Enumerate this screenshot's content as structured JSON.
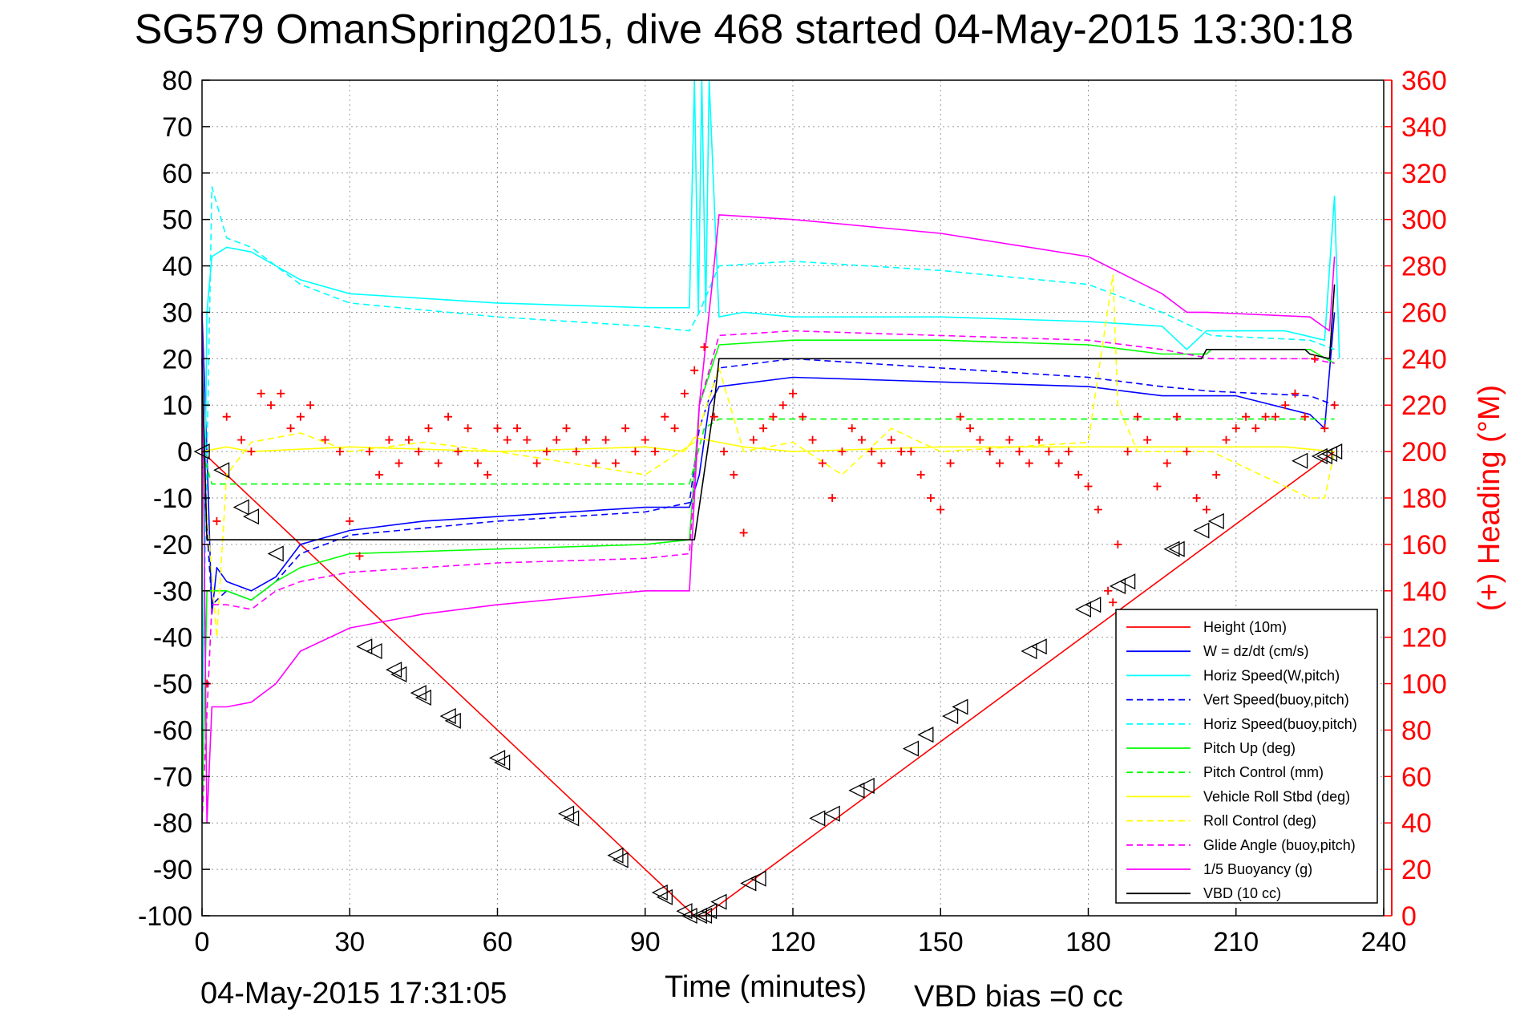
{
  "title": "SG579 OmanSpring2015, dive 468 started 04-May-2015 13:30:18",
  "footer": {
    "timestamp": "04-May-2015 17:31:05",
    "vbd_bias": "VBD bias =0 cc"
  },
  "colors": {
    "red": "#ff0000",
    "blue": "#0000ff",
    "cyan": "#00ffff",
    "green": "#00ff00",
    "yellow": "#ffff00",
    "magenta": "#ff00ff",
    "black": "#000000"
  },
  "chart_data": {
    "type": "line",
    "xlabel": "Time (minutes)",
    "ylabel": "",
    "y2label": "(+) Heading (°M)",
    "xlim": [
      0,
      240
    ],
    "ylim": [
      -100,
      80
    ],
    "y2lim": [
      0,
      360
    ],
    "xticks": [
      "0",
      "30",
      "60",
      "90",
      "120",
      "150",
      "180",
      "210",
      "240"
    ],
    "yticks": [
      "80",
      "70",
      "60",
      "50",
      "40",
      "30",
      "20",
      "10",
      "0",
      "-10",
      "-20",
      "-30",
      "-40",
      "-50",
      "-60",
      "-70",
      "-80",
      "-90",
      "-100"
    ],
    "y2ticks": [
      "360",
      "340",
      "320",
      "300",
      "280",
      "260",
      "240",
      "220",
      "200",
      "180",
      "160",
      "140",
      "120",
      "100",
      "80",
      "60",
      "40",
      "20",
      "0"
    ],
    "grid": true,
    "legend_position": "bottom-right",
    "series": [
      {
        "name": "Height (10m)",
        "color": "#ff0000",
        "dash": "solid",
        "x": [
          0,
          100,
          102,
          230
        ],
        "y": [
          0,
          -100,
          -100,
          0
        ]
      },
      {
        "name": "W = dz/dt (cm/s)",
        "color": "#0000ff",
        "dash": "solid",
        "x": [
          0,
          1,
          2,
          3,
          5,
          10,
          15,
          20,
          30,
          45,
          60,
          75,
          90,
          99,
          101,
          103,
          105,
          120,
          150,
          180,
          195,
          205,
          210,
          225,
          228,
          230
        ],
        "y": [
          30,
          0,
          -35,
          -25,
          -28,
          -30,
          -27,
          -20,
          -17,
          -15,
          -14,
          -13,
          -12,
          -12,
          -5,
          10,
          14,
          16,
          15,
          14,
          12,
          12,
          12,
          8,
          5,
          30
        ]
      },
      {
        "name": "Horiz Speed(W,pitch)",
        "color": "#00ffff",
        "dash": "solid",
        "x": [
          0,
          1,
          2,
          5,
          10,
          15,
          20,
          30,
          60,
          90,
          99,
          100,
          100.8,
          101.5,
          102.3,
          103,
          105,
          110,
          120,
          150,
          180,
          195,
          200,
          204,
          220,
          228,
          230,
          231
        ],
        "y": [
          -70,
          30,
          42,
          44,
          43,
          40,
          37,
          34,
          32,
          31,
          31,
          80,
          30,
          80,
          30,
          80,
          29,
          30,
          29,
          29,
          28,
          27,
          22,
          26,
          26,
          24,
          55,
          20
        ]
      },
      {
        "name": "Vert Speed(buoy,pitch)",
        "color": "#0000ff",
        "dash": "dashed",
        "x": [
          0,
          2,
          5,
          10,
          15,
          20,
          30,
          60,
          90,
          99,
          101,
          105,
          120,
          150,
          180,
          195,
          205,
          225,
          230
        ],
        "y": [
          0,
          -33,
          -30,
          -32,
          -28,
          -22,
          -18,
          -15,
          -13,
          -11,
          5,
          18,
          20,
          18,
          16,
          14,
          13,
          12,
          10
        ]
      },
      {
        "name": "Horiz Speed(buoy,pitch)",
        "color": "#00ffff",
        "dash": "dashed",
        "x": [
          0,
          2,
          5,
          10,
          15,
          20,
          30,
          60,
          90,
          99,
          101,
          105,
          120,
          150,
          180,
          195,
          205,
          225,
          230
        ],
        "y": [
          -60,
          57,
          46,
          44,
          40,
          36,
          32,
          29,
          27,
          26,
          30,
          40,
          41,
          39,
          36,
          30,
          25,
          24,
          22
        ]
      },
      {
        "name": "Pitch Up (deg)",
        "color": "#00ff00",
        "dash": "solid",
        "x": [
          0,
          1,
          2,
          5,
          10,
          15,
          20,
          30,
          60,
          90,
          99,
          101,
          105,
          120,
          150,
          180,
          195,
          204,
          205,
          225,
          230
        ],
        "y": [
          -80,
          -30,
          -30,
          -30,
          -32,
          -28,
          -25,
          -22,
          -21,
          -20,
          -19,
          10,
          23,
          24,
          24,
          23,
          21,
          21,
          22,
          22,
          19
        ]
      },
      {
        "name": "Pitch Control (mm)",
        "color": "#00ff00",
        "dash": "dashed",
        "x": [
          0,
          2,
          5,
          20,
          60,
          98,
          99,
          102,
          105,
          150,
          200,
          225,
          230
        ],
        "y": [
          0,
          -7,
          -7,
          -7,
          -7,
          -7,
          -7,
          5,
          7,
          7,
          7,
          7,
          7
        ]
      },
      {
        "name": "Vehicle Roll Stbd (deg)",
        "color": "#ffff00",
        "dash": "solid",
        "x": [
          0,
          5,
          10,
          30,
          60,
          90,
          98,
          100,
          105,
          110,
          120,
          150,
          180,
          205,
          220,
          230
        ],
        "y": [
          0,
          1,
          0,
          1,
          0,
          1,
          0,
          3,
          2,
          1,
          0,
          1,
          1,
          1,
          1,
          0
        ]
      },
      {
        "name": "Roll Control (deg)",
        "color": "#ffff00",
        "dash": "dashed",
        "x": [
          0,
          3,
          5,
          10,
          20,
          30,
          45,
          60,
          90,
          100,
          105,
          110,
          120,
          130,
          140,
          150,
          180,
          185,
          186,
          190,
          205,
          225,
          228,
          230
        ],
        "y": [
          0,
          -40,
          -5,
          2,
          4,
          0,
          2,
          0,
          -5,
          2,
          18,
          0,
          2,
          -5,
          5,
          0,
          2,
          38,
          10,
          0,
          0,
          -10,
          -10,
          0
        ]
      },
      {
        "name": "Glide Angle (buoy,pitch)",
        "color": "#ff00ff",
        "dash": "dashed",
        "x": [
          0,
          2,
          5,
          10,
          15,
          20,
          30,
          60,
          90,
          99,
          101,
          105,
          120,
          150,
          180,
          195,
          205,
          225,
          230
        ],
        "y": [
          -80,
          -33,
          -33,
          -34,
          -30,
          -28,
          -26,
          -24,
          -23,
          -22,
          10,
          25,
          26,
          25,
          24,
          22,
          20,
          20,
          19
        ]
      },
      {
        "name": "1/5 Buoyancy (g)",
        "color": "#ff00ff",
        "dash": "solid",
        "x": [
          0,
          1,
          2,
          5,
          10,
          15,
          20,
          30,
          45,
          60,
          90,
          99,
          101,
          104,
          105,
          120,
          150,
          180,
          195,
          200,
          204,
          225,
          229,
          230
        ],
        "y": [
          30,
          -80,
          -55,
          -55,
          -54,
          -50,
          -43,
          -38,
          -35,
          -33,
          -30,
          -30,
          10,
          40,
          51,
          50,
          47,
          42,
          34,
          30,
          30,
          29,
          26,
          42
        ]
      },
      {
        "name": "VBD (10 cc)",
        "color": "#000000",
        "dash": "solid",
        "x": [
          0,
          1,
          2,
          98,
          99,
          100,
          104,
          105,
          180,
          190,
          203,
          204,
          224,
          225,
          229,
          230
        ],
        "y": [
          20,
          -19,
          -19,
          -19,
          -19,
          -19,
          10,
          20,
          20,
          20,
          20,
          22,
          22,
          21,
          20,
          36
        ]
      }
    ],
    "heading": {
      "name": "Heading (°M)",
      "color": "#ff0000",
      "marker": "+",
      "axis": "right",
      "x": [
        1,
        3,
        5,
        8,
        10,
        12,
        14,
        16,
        18,
        20,
        22,
        25,
        28,
        30,
        32,
        34,
        36,
        38,
        40,
        42,
        44,
        46,
        48,
        50,
        52,
        54,
        56,
        58,
        60,
        62,
        64,
        66,
        68,
        70,
        72,
        74,
        76,
        78,
        80,
        82,
        84,
        86,
        88,
        90,
        92,
        94,
        96,
        98,
        100,
        102,
        104,
        106,
        108,
        110,
        112,
        114,
        116,
        118,
        120,
        122,
        124,
        126,
        128,
        130,
        132,
        134,
        136,
        138,
        140,
        142,
        144,
        146,
        148,
        150,
        152,
        154,
        156,
        158,
        160,
        162,
        164,
        166,
        168,
        170,
        172,
        174,
        176,
        178,
        180,
        182,
        184,
        185,
        186,
        188,
        190,
        192,
        194,
        196,
        198,
        200,
        202,
        204,
        206,
        208,
        210,
        212,
        214,
        216,
        218,
        220,
        222,
        224,
        226,
        228,
        230
      ],
      "y": [
        100,
        170,
        215,
        205,
        200,
        225,
        220,
        225,
        210,
        215,
        220,
        205,
        200,
        170,
        155,
        200,
        190,
        205,
        195,
        205,
        200,
        210,
        195,
        215,
        200,
        210,
        195,
        190,
        210,
        205,
        210,
        205,
        195,
        200,
        205,
        210,
        200,
        205,
        195,
        205,
        195,
        210,
        200,
        205,
        200,
        215,
        210,
        225,
        235,
        245,
        215,
        200,
        190,
        165,
        205,
        210,
        215,
        220,
        225,
        215,
        205,
        195,
        180,
        200,
        210,
        205,
        200,
        195,
        205,
        200,
        200,
        190,
        180,
        175,
        195,
        215,
        210,
        205,
        200,
        195,
        205,
        200,
        195,
        205,
        200,
        195,
        200,
        190,
        185,
        175,
        140,
        135,
        160,
        200,
        215,
        205,
        185,
        195,
        215,
        200,
        180,
        175,
        190,
        205,
        210,
        215,
        210,
        215,
        215,
        220,
        225,
        215,
        240,
        210,
        220
      ]
    },
    "markers": {
      "name": "triangle markers",
      "color": "#000000",
      "x": [
        0,
        4,
        8,
        10,
        15,
        33,
        35,
        39,
        40,
        44,
        45,
        50,
        51,
        60,
        61,
        74,
        75,
        84,
        85,
        93,
        94,
        98,
        99,
        101,
        102,
        103,
        105,
        111,
        113,
        125,
        128,
        133,
        135,
        144,
        147,
        152,
        154,
        168,
        170,
        179,
        181,
        186,
        188,
        197,
        198,
        203,
        206,
        223,
        227,
        228,
        229,
        230
      ],
      "y": [
        0,
        -4,
        -12,
        -14,
        -22,
        -42,
        -43,
        -47,
        -48,
        -52,
        -53,
        -57,
        -58,
        -66,
        -67,
        -78,
        -79,
        -87,
        -88,
        -95,
        -96,
        -99,
        -100,
        -100,
        -100,
        -99,
        -97,
        -93,
        -92,
        -79,
        -78,
        -73,
        -72,
        -64,
        -61,
        -57,
        -55,
        -43,
        -42,
        -34,
        -33,
        -29,
        -28,
        -21,
        -21,
        -17,
        -15,
        -2,
        -1,
        -1,
        -0.5,
        0
      ]
    }
  }
}
